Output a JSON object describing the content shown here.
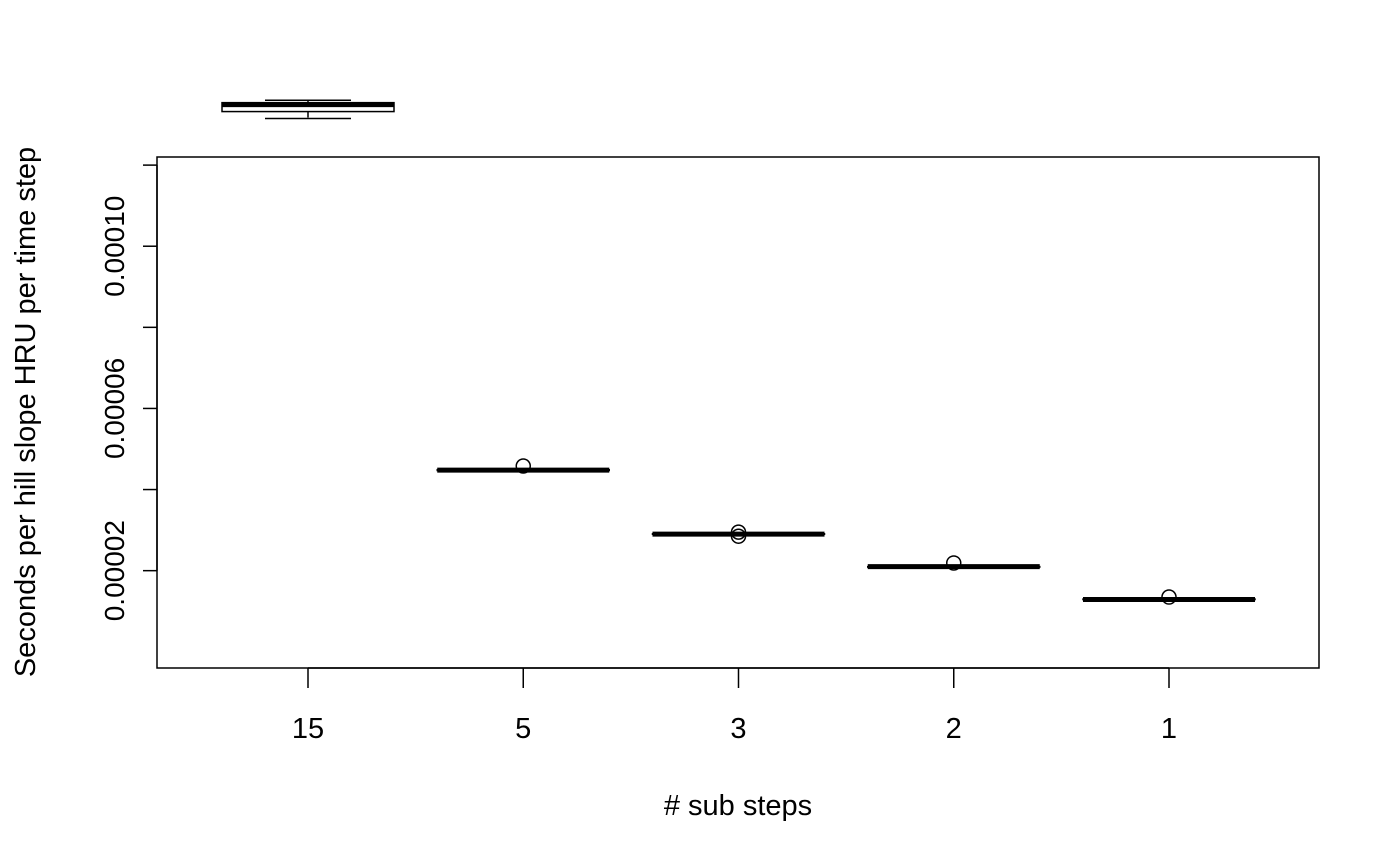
{
  "chart_data": {
    "type": "box",
    "title": "",
    "xlabel": "# sub steps",
    "ylabel": "Seconds per hill slope HRU per time step",
    "categories": [
      "15",
      "5",
      "3",
      "2",
      "1"
    ],
    "ylim": [
      -4e-06,
      0.000122
    ],
    "y_ticks": [
      2e-05,
      6e-05,
      0.0001
    ],
    "y_tick_labels": [
      "0.00002",
      "0.00006",
      "0.00010"
    ],
    "boxes": [
      {
        "category": "15",
        "min": 0.0001315,
        "q1": 0.0001332,
        "median": 0.0001349,
        "q3": 0.0001354,
        "max": 0.000136,
        "outliers": []
      },
      {
        "category": "5",
        "min": 4.45e-05,
        "q1": 4.47e-05,
        "median": 4.48e-05,
        "q3": 4.49e-05,
        "max": 4.5e-05,
        "outliers": [
          4.58e-05
        ]
      },
      {
        "category": "3",
        "min": 2.89e-05,
        "q1": 2.9e-05,
        "median": 2.9e-05,
        "q3": 2.91e-05,
        "max": 2.92e-05,
        "outliers": [
          2.95e-05,
          2.85e-05
        ]
      },
      {
        "category": "2",
        "min": 2.09e-05,
        "q1": 2.1e-05,
        "median": 2.1e-05,
        "q3": 2.1e-05,
        "max": 2.11e-05,
        "outliers": [
          2.19e-05
        ]
      },
      {
        "category": "1",
        "min": 1.28e-05,
        "q1": 1.29e-05,
        "median": 1.29e-05,
        "q3": 1.3e-05,
        "max": 1.3e-05,
        "outliers": [
          1.35e-05
        ]
      }
    ],
    "grid": false,
    "legend": "none"
  }
}
